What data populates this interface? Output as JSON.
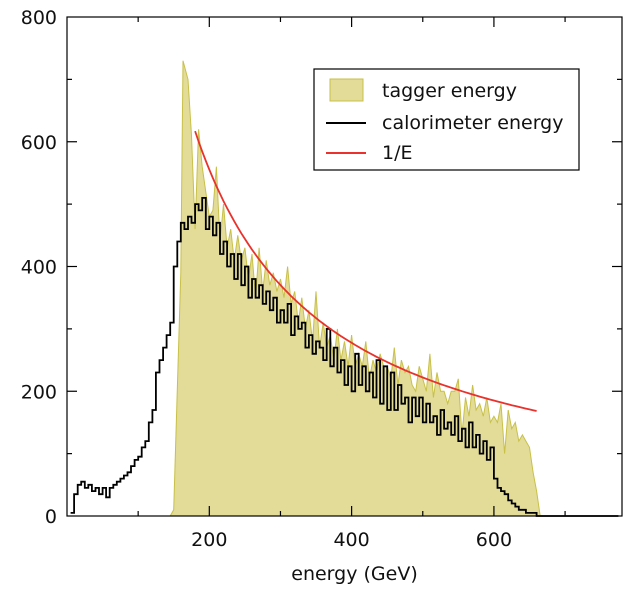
{
  "chart_data": {
    "type": "area",
    "xlabel": "energy (GeV)",
    "ylabel": "",
    "xlim": [
      0,
      780
    ],
    "ylim": [
      0,
      800
    ],
    "x_ticks": [
      200,
      400,
      600
    ],
    "y_ticks": [
      0,
      200,
      400,
      600,
      800
    ],
    "grid": false,
    "legend_position": "top-right",
    "series": [
      {
        "name": "tagger energy",
        "kind": "filled-area",
        "color": "#e2dc98",
        "edge_color": "#c8c048",
        "x": [
          5,
          145,
          150,
          160,
          163,
          170,
          175,
          180,
          185,
          190,
          200,
          205,
          210,
          215,
          220,
          225,
          230,
          235,
          240,
          245,
          250,
          255,
          260,
          265,
          270,
          275,
          280,
          285,
          290,
          295,
          300,
          305,
          310,
          315,
          320,
          325,
          330,
          335,
          340,
          345,
          350,
          355,
          360,
          365,
          370,
          375,
          380,
          385,
          390,
          395,
          400,
          405,
          410,
          415,
          420,
          425,
          430,
          435,
          440,
          445,
          450,
          455,
          460,
          465,
          470,
          475,
          480,
          485,
          490,
          495,
          500,
          505,
          510,
          515,
          520,
          525,
          530,
          535,
          540,
          545,
          550,
          555,
          560,
          565,
          570,
          575,
          580,
          585,
          590,
          595,
          600,
          605,
          610,
          615,
          620,
          625,
          630,
          635,
          640,
          645,
          650,
          655,
          660,
          665,
          780
        ],
        "y": [
          0,
          0,
          10,
          390,
          730,
          700,
          610,
          460,
          620,
          560,
          480,
          490,
          560,
          440,
          500,
          430,
          460,
          410,
          450,
          410,
          430,
          380,
          420,
          350,
          430,
          360,
          410,
          370,
          390,
          360,
          380,
          350,
          400,
          340,
          360,
          310,
          350,
          300,
          330,
          280,
          360,
          270,
          310,
          270,
          290,
          250,
          300,
          250,
          280,
          240,
          290,
          240,
          260,
          240,
          280,
          220,
          250,
          230,
          260,
          240,
          240,
          220,
          270,
          210,
          250,
          230,
          240,
          210,
          200,
          240,
          220,
          200,
          260,
          190,
          230,
          200,
          200,
          180,
          200,
          200,
          220,
          130,
          190,
          160,
          210,
          170,
          180,
          160,
          190,
          150,
          160,
          150,
          180,
          100,
          170,
          140,
          150,
          120,
          130,
          120,
          110,
          70,
          40,
          0,
          0
        ]
      },
      {
        "name": "calorimeter energy",
        "kind": "step",
        "color": "#000000",
        "x": [
          5,
          10,
          15,
          20,
          25,
          30,
          35,
          40,
          45,
          50,
          55,
          60,
          65,
          70,
          75,
          80,
          85,
          90,
          95,
          100,
          105,
          110,
          115,
          120,
          125,
          130,
          135,
          140,
          145,
          150,
          155,
          160,
          165,
          170,
          175,
          180,
          185,
          190,
          195,
          200,
          205,
          210,
          215,
          220,
          225,
          230,
          235,
          240,
          245,
          250,
          255,
          260,
          265,
          270,
          275,
          280,
          285,
          290,
          295,
          300,
          305,
          310,
          315,
          320,
          325,
          330,
          335,
          340,
          345,
          350,
          355,
          360,
          365,
          370,
          375,
          380,
          385,
          390,
          395,
          400,
          405,
          410,
          415,
          420,
          425,
          430,
          435,
          440,
          445,
          450,
          455,
          460,
          465,
          470,
          475,
          480,
          485,
          490,
          495,
          500,
          505,
          510,
          515,
          520,
          525,
          530,
          535,
          540,
          545,
          550,
          555,
          560,
          565,
          570,
          575,
          580,
          585,
          590,
          595,
          600,
          605,
          610,
          615,
          620,
          625,
          630,
          635,
          640,
          645,
          650,
          655,
          660,
          665,
          670,
          675,
          680,
          685,
          690,
          695,
          700,
          705,
          710,
          715,
          720,
          725,
          730,
          735,
          740,
          745,
          750,
          755,
          760,
          765,
          770
        ],
        "y": [
          5,
          35,
          50,
          55,
          45,
          50,
          40,
          45,
          35,
          45,
          30,
          45,
          50,
          55,
          60,
          65,
          70,
          80,
          90,
          95,
          110,
          120,
          150,
          170,
          230,
          250,
          270,
          290,
          310,
          400,
          440,
          470,
          460,
          480,
          470,
          500,
          490,
          510,
          460,
          480,
          450,
          470,
          420,
          440,
          400,
          420,
          380,
          420,
          370,
          400,
          350,
          380,
          350,
          370,
          340,
          360,
          330,
          350,
          310,
          330,
          310,
          340,
          290,
          320,
          300,
          310,
          270,
          290,
          260,
          280,
          270,
          250,
          300,
          240,
          270,
          230,
          250,
          210,
          240,
          200,
          260,
          210,
          240,
          200,
          230,
          190,
          250,
          180,
          240,
          170,
          230,
          170,
          210,
          180,
          190,
          150,
          190,
          160,
          190,
          150,
          180,
          150,
          160,
          130,
          170,
          140,
          150,
          130,
          160,
          120,
          140,
          110,
          150,
          110,
          130,
          100,
          120,
          90,
          110,
          60,
          45,
          40,
          35,
          25,
          20,
          15,
          10,
          10,
          5,
          5,
          5,
          0,
          0,
          0,
          0,
          0,
          0,
          0,
          0,
          0,
          0,
          0,
          0,
          0,
          0,
          0,
          0,
          0,
          0,
          0,
          0,
          0,
          0,
          0
        ]
      },
      {
        "name": "1/E",
        "kind": "line",
        "color": "#e8322b",
        "formula": "y = 111000 / x",
        "x": [
          180,
          660
        ],
        "y": [
          617,
          168
        ]
      }
    ]
  }
}
